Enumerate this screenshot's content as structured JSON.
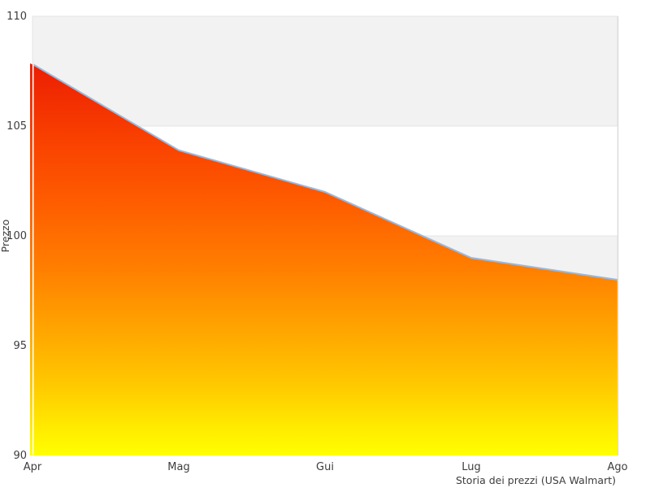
{
  "chart_data": {
    "type": "area",
    "title": "Storia dei prezzi (USA Walmart)",
    "xlabel": "",
    "ylabel": "Prezzo",
    "categories": [
      "Apr",
      "Mag",
      "Gui",
      "Lug",
      "Ago"
    ],
    "values": [
      107.8,
      103.9,
      102.0,
      99.0,
      98.0
    ],
    "ylim": [
      90,
      110
    ],
    "yticks": [
      110,
      105,
      100,
      95,
      90
    ],
    "grid_bands": [
      [
        105,
        110
      ],
      [
        95,
        100
      ]
    ],
    "legend_position": "none",
    "gradient_stops": [
      {
        "offset": 0,
        "color": "#ec1e02"
      },
      {
        "offset": 0.19,
        "color": "#f94000"
      },
      {
        "offset": 0.35,
        "color": "#fe5c00"
      },
      {
        "offset": 0.52,
        "color": "#ff7e00"
      },
      {
        "offset": 0.69,
        "color": "#ffa800"
      },
      {
        "offset": 0.82,
        "color": "#ffc900"
      },
      {
        "offset": 0.93,
        "color": "#ffeb00"
      },
      {
        "offset": 1,
        "color": "#ffff00"
      }
    ],
    "colors": {
      "line": "#9cb8da",
      "band_fill": "#f2f2f2",
      "band_border": "#e4e4e4",
      "plot_border": "#dcdcdc",
      "axis_gridline_white": "#ffffff",
      "text": "#3d3d3d",
      "background": "#ffffff"
    }
  }
}
